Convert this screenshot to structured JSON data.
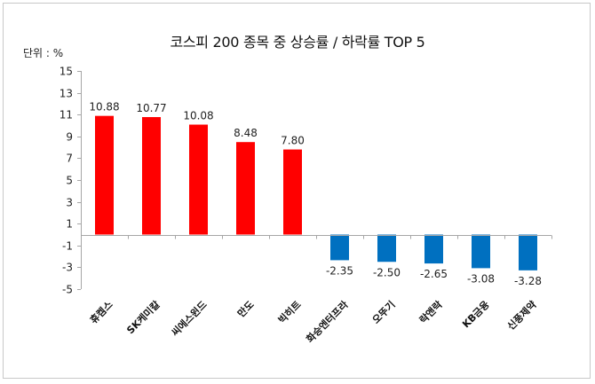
{
  "chart_data": {
    "type": "bar",
    "title": "코스피 200 종목 중  상승률 / 하락률 TOP 5",
    "unit_label": "단위 : %",
    "xlabel": "",
    "ylabel": "단위 : %",
    "ylim": [
      -5,
      15
    ],
    "yticks": [
      15,
      13,
      11,
      9,
      7,
      5,
      3,
      1,
      -1,
      -3,
      -5
    ],
    "grid": false,
    "legend": null,
    "categories": [
      "휴켐스",
      "SK케미칼",
      "씨에스윈드",
      "만도",
      "빅히트",
      "화승엔터프라",
      "오뚜기",
      "락앤락",
      "KB금융",
      "신풍제약"
    ],
    "values": [
      10.88,
      10.77,
      10.08,
      8.48,
      7.8,
      -2.35,
      -2.5,
      -2.65,
      -3.08,
      -3.28
    ],
    "value_labels": [
      "10.88",
      "10.77",
      "10.08",
      "8.48",
      "7.80",
      "-2.35",
      "-2.50",
      "-2.65",
      "-3.08",
      "-3.28"
    ],
    "colors": {
      "positive": "#ff0000",
      "negative": "#0070c0",
      "axis": "#a6a6a6"
    }
  }
}
